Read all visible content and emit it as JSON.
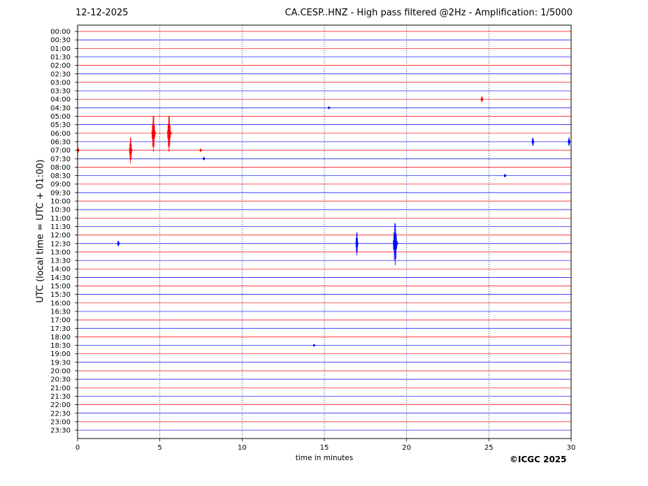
{
  "header": {
    "date": "12-12-2025",
    "title": "CA.CESP..HNZ - High pass filtered @2Hz - Amplification: 1/5000"
  },
  "footer": {
    "credit": "©ICGC 2025"
  },
  "chart_data": {
    "type": "line",
    "xlabel": "time in minutes",
    "ylabel": "UTC (local time = UTC + 01:00)",
    "xlim": [
      0,
      30
    ],
    "x_ticks": [
      "0",
      "5",
      "10",
      "15",
      "20",
      "25",
      "30"
    ],
    "x_gridlines": [
      5,
      10,
      15,
      20,
      25
    ],
    "grid": "vertical dotted",
    "trace_colors": [
      "#ff0000",
      "#0000ff"
    ],
    "traces": [
      "00:00",
      "00:30",
      "01:00",
      "01:30",
      "02:00",
      "02:30",
      "03:00",
      "03:30",
      "04:00",
      "04:30",
      "05:00",
      "05:30",
      "06:00",
      "06:30",
      "07:00",
      "07:30",
      "08:00",
      "08:30",
      "09:00",
      "09:30",
      "10:00",
      "10:30",
      "11:00",
      "11:30",
      "12:00",
      "12:30",
      "13:00",
      "13:30",
      "14:00",
      "14:30",
      "15:00",
      "15:30",
      "16:00",
      "16:30",
      "17:00",
      "17:30",
      "18:00",
      "18:30",
      "19:00",
      "19:30",
      "20:00",
      "20:30",
      "21:00",
      "21:30",
      "22:00",
      "22:30",
      "23:00",
      "23:30"
    ],
    "events": [
      {
        "trace": "04:00",
        "minute": 24.6,
        "amplitude": 0.35
      },
      {
        "trace": "04:30",
        "minute": 15.3,
        "amplitude": 0.15
      },
      {
        "trace": "06:00",
        "minute": 4.65,
        "amplitude": 2.2
      },
      {
        "trace": "06:00",
        "minute": 5.6,
        "amplitude": 2.2
      },
      {
        "trace": "06:30",
        "minute": 27.7,
        "amplitude": 0.5
      },
      {
        "trace": "06:30",
        "minute": 29.9,
        "amplitude": 0.5
      },
      {
        "trace": "07:00",
        "minute": 3.25,
        "amplitude": 1.6
      },
      {
        "trace": "07:00",
        "minute": 0.05,
        "amplitude": 0.3
      },
      {
        "trace": "07:00",
        "minute": 7.5,
        "amplitude": 0.2
      },
      {
        "trace": "07:30",
        "minute": 7.7,
        "amplitude": 0.2
      },
      {
        "trace": "08:30",
        "minute": 26.0,
        "amplitude": 0.2
      },
      {
        "trace": "12:30",
        "minute": 2.5,
        "amplitude": 0.35
      },
      {
        "trace": "12:30",
        "minute": 17.0,
        "amplitude": 1.4
      },
      {
        "trace": "12:30",
        "minute": 19.35,
        "amplitude": 2.6
      },
      {
        "trace": "18:30",
        "minute": 14.4,
        "amplitude": 0.15
      }
    ]
  }
}
